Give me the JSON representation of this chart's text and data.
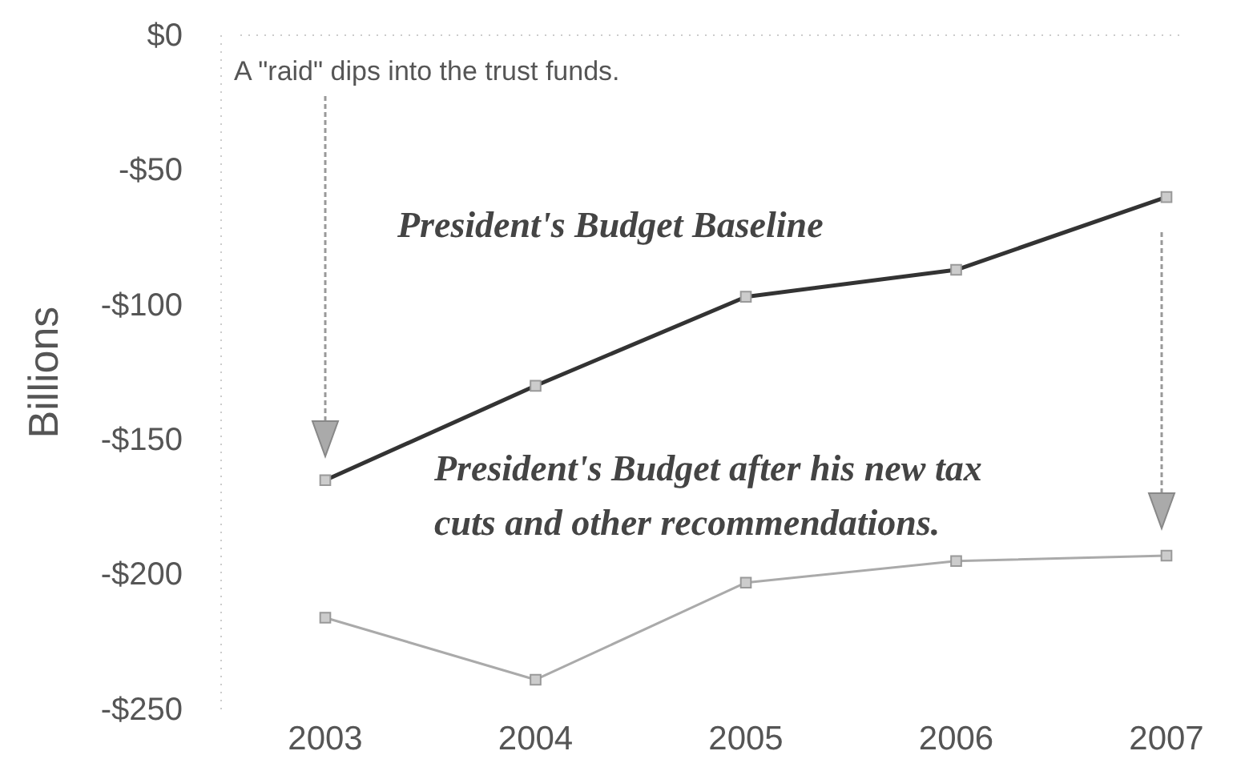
{
  "chart_data": {
    "type": "line",
    "ylabel": "Billions",
    "categories": [
      "2003",
      "2004",
      "2005",
      "2006",
      "2007"
    ],
    "series": [
      {
        "name": "President's Budget Baseline",
        "color": "#333333",
        "values": [
          -165,
          -130,
          -97,
          -87,
          -60
        ]
      },
      {
        "name": "President's Budget after his new tax cuts and other recommendations.",
        "color": "#aaaaaa",
        "values": [
          -216,
          -239,
          -203,
          -195,
          -193
        ]
      }
    ],
    "ylim": [
      -250,
      0
    ],
    "yticks": [
      {
        "value": 0,
        "label": "$0"
      },
      {
        "value": -50,
        "label": "-$50"
      },
      {
        "value": -100,
        "label": "-$100"
      },
      {
        "value": -150,
        "label": "-$150"
      },
      {
        "value": -200,
        "label": "-$200"
      },
      {
        "value": -250,
        "label": "-$250"
      }
    ],
    "marker": "square",
    "line_style": "solid",
    "grid": false,
    "annotations": [
      "A \"raid\" dips into the trust funds."
    ]
  }
}
